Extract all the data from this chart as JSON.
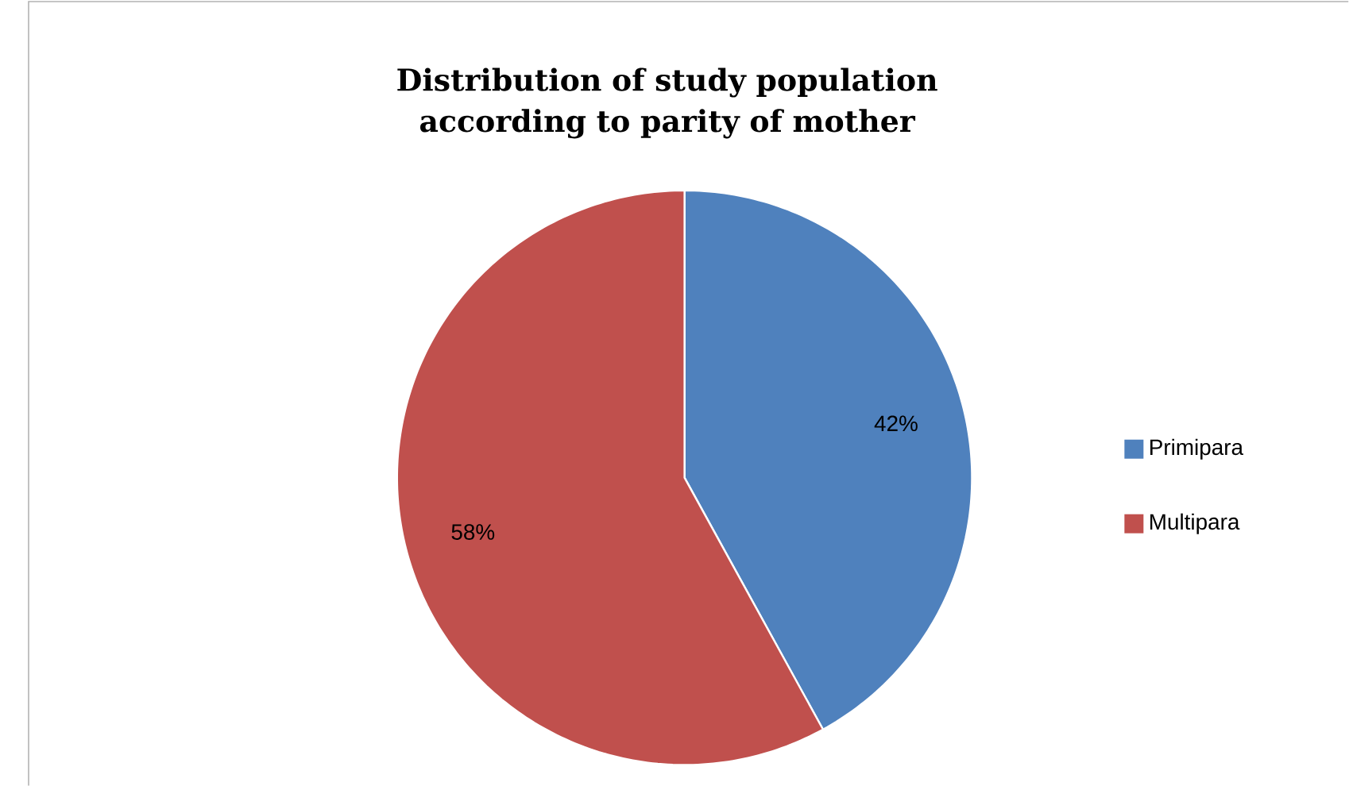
{
  "chart_data": {
    "type": "pie",
    "title": "Distribution of study population according to parity of mother",
    "categories": [
      "Primipara",
      "Multipara"
    ],
    "values": [
      42,
      58
    ],
    "value_labels": [
      "42%",
      "58%"
    ],
    "colors": [
      "#4f81bd",
      "#c0504d"
    ],
    "legend": "right"
  }
}
